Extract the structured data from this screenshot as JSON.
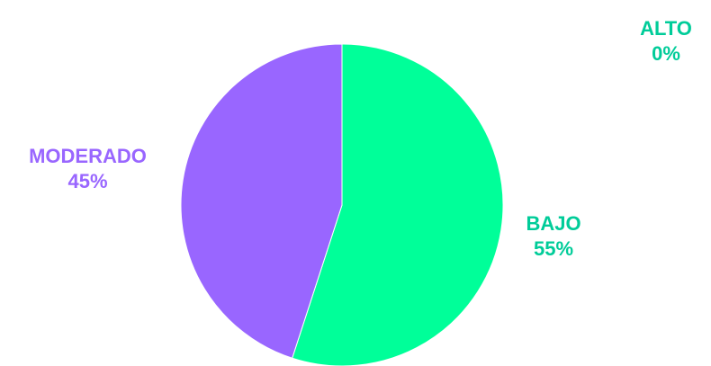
{
  "chart_data": {
    "type": "pie",
    "categories": [
      "BAJO",
      "MODERADO",
      "ALTO"
    ],
    "values": [
      55,
      45,
      0
    ],
    "value_labels": [
      "55%",
      "45%",
      "0%"
    ],
    "colors": [
      "#00FF99",
      "#9966FF",
      "#00CC99"
    ],
    "title": "",
    "legend": "none",
    "slices": [
      {
        "label": "BAJO",
        "value": 55,
        "value_label": "55%",
        "color": "#00FF99",
        "label_color": "#00CC99"
      },
      {
        "label": "MODERADO",
        "value": 45,
        "value_label": "45%",
        "color": "#9966FF",
        "label_color": "#9966FF"
      },
      {
        "label": "ALTO",
        "value": 0,
        "value_label": "0%",
        "color": "#00CC99",
        "label_color": "#00CC99"
      }
    ]
  }
}
